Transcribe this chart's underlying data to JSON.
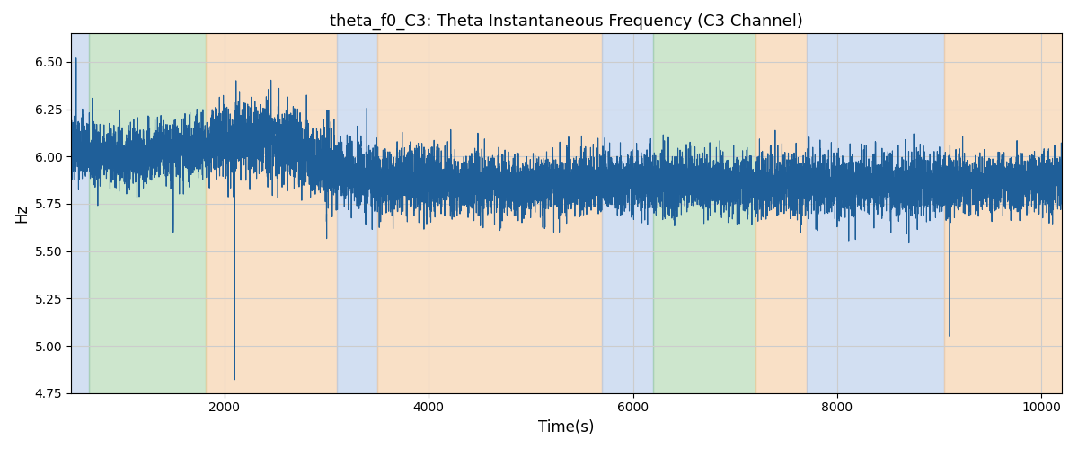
{
  "title": "theta_f0_C3: Theta Instantaneous Frequency (C3 Channel)",
  "xlabel": "Time(s)",
  "ylabel": "Hz",
  "xlim": [
    500,
    10200
  ],
  "ylim": [
    4.75,
    6.65
  ],
  "yticks": [
    4.75,
    5.0,
    5.25,
    5.5,
    5.75,
    6.0,
    6.25,
    6.5
  ],
  "xticks": [
    2000,
    4000,
    6000,
    8000,
    10000
  ],
  "line_color": "#1f5f99",
  "line_width": 0.8,
  "background_color": "#ffffff",
  "grid_color": "#cccccc",
  "regions": [
    {
      "xmin": 500,
      "xmax": 680,
      "color": "#aec6e8",
      "alpha": 0.55
    },
    {
      "xmin": 680,
      "xmax": 1820,
      "color": "#90c990",
      "alpha": 0.45
    },
    {
      "xmin": 1820,
      "xmax": 3100,
      "color": "#f5c897",
      "alpha": 0.55
    },
    {
      "xmin": 3100,
      "xmax": 3500,
      "color": "#aec6e8",
      "alpha": 0.55
    },
    {
      "xmin": 3500,
      "xmax": 5700,
      "color": "#f5c897",
      "alpha": 0.55
    },
    {
      "xmin": 5700,
      "xmax": 6200,
      "color": "#aec6e8",
      "alpha": 0.55
    },
    {
      "xmin": 6200,
      "xmax": 7200,
      "color": "#90c990",
      "alpha": 0.45
    },
    {
      "xmin": 7200,
      "xmax": 7700,
      "color": "#f5c897",
      "alpha": 0.55
    },
    {
      "xmin": 7700,
      "xmax": 9050,
      "color": "#aec6e8",
      "alpha": 0.55
    },
    {
      "xmin": 9050,
      "xmax": 10200,
      "color": "#f5c897",
      "alpha": 0.55
    }
  ],
  "seed": 42,
  "n_points": 9700
}
